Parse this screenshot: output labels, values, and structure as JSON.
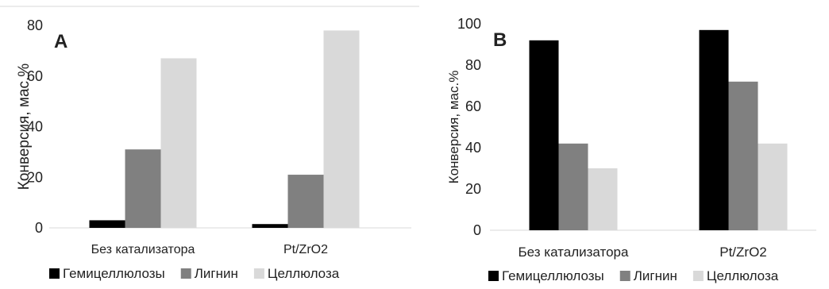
{
  "chart_data": [
    {
      "type": "bar",
      "panel_label": "A",
      "categories": [
        "Без катализатора",
        "Pt/ZrO2"
      ],
      "series": [
        {
          "name": "Гемицеллюлозы",
          "color": "#000000",
          "values": [
            3,
            1.5
          ]
        },
        {
          "name": "Лигнин",
          "color": "#808080",
          "values": [
            31,
            21
          ]
        },
        {
          "name": "Целлюлоза",
          "color": "#d9d9d9",
          "values": [
            67,
            78
          ]
        }
      ],
      "ylabel": "Конверсия, мас.%",
      "ylim": [
        0,
        80
      ],
      "yticks": [
        "0",
        "20",
        "40",
        "60",
        "80"
      ],
      "grid": false,
      "legend": "bottom"
    },
    {
      "type": "bar",
      "panel_label": "B",
      "categories": [
        "Без катализатора",
        "Pt/ZrO2"
      ],
      "series": [
        {
          "name": "Гемицеллюлозы",
          "color": "#000000",
          "values": [
            92,
            97
          ]
        },
        {
          "name": "Лигнин",
          "color": "#808080",
          "values": [
            42,
            72
          ]
        },
        {
          "name": "Целлюлоза",
          "color": "#d9d9d9",
          "values": [
            30,
            42
          ]
        }
      ],
      "ylabel": "Конверсия, мас.%",
      "ylim": [
        0,
        100
      ],
      "yticks": [
        "0",
        "20",
        "40",
        "60",
        "80",
        "100"
      ],
      "grid": false,
      "legend": "bottom"
    }
  ]
}
